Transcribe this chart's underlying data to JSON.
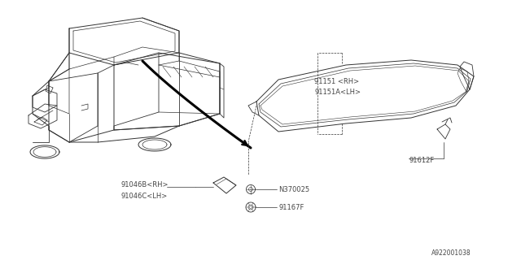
{
  "bg_color": "#ffffff",
  "line_color": "#333333",
  "text_color": "#444444",
  "fig_width": 6.4,
  "fig_height": 3.2,
  "dpi": 100,
  "diagram_id": "A922001038",
  "labels": {
    "part1": "91151 <RH>",
    "part1a": "91151A<LH>",
    "part2": "91612F",
    "part3a": "91046B<RH>",
    "part3b": "91046C<LH>",
    "part4": "N370025",
    "part5": "91167F"
  }
}
